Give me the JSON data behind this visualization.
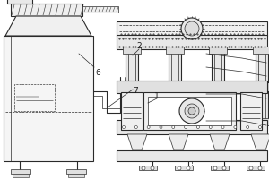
{
  "bg_color": "#ffffff",
  "line_color": "#2a2a2a",
  "dash_color": "#2a2a2a",
  "label_color": "#1a1a1a",
  "fig_bg": "#ffffff",
  "lw_main": 0.8,
  "lw_thin": 0.5,
  "lw_thick": 1.2
}
